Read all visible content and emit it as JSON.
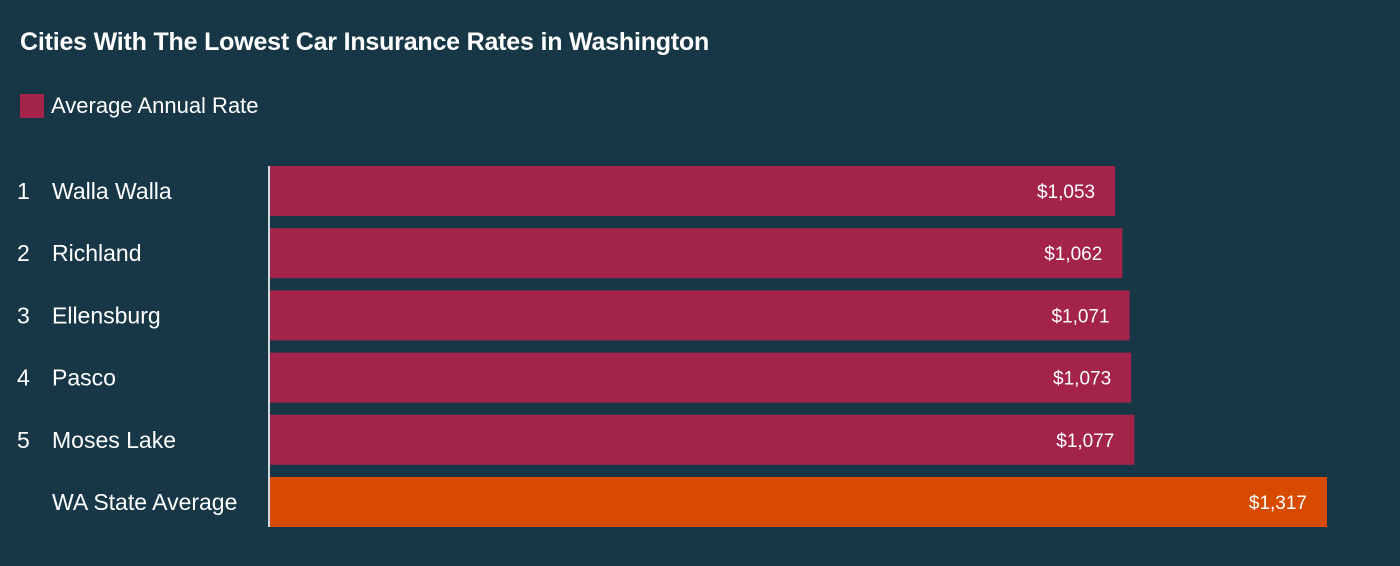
{
  "title": "Cities With The Lowest Car Insurance Rates in Washington",
  "legend": {
    "label": "Average Annual Rate",
    "color": "#A3234B"
  },
  "colors": {
    "background": "#173746",
    "city_bar": "#A3234B",
    "average_bar": "#D84A00",
    "axis_line": "#CFD8DC"
  },
  "chart_data": {
    "type": "bar",
    "orientation": "horizontal",
    "title": "Cities With The Lowest Car Insurance Rates in Washington",
    "categories": [
      "Walla Walla",
      "Richland",
      "Ellensburg",
      "Pasco",
      "Moses Lake",
      "WA State Average"
    ],
    "ranks": [
      "1",
      "2",
      "3",
      "4",
      "5",
      ""
    ],
    "series": [
      {
        "name": "Average Annual Rate",
        "values": [
          1053,
          1062,
          1071,
          1073,
          1077,
          1317
        ]
      }
    ],
    "value_labels": [
      "$1,053",
      "$1,062",
      "$1,071",
      "$1,073",
      "$1,077",
      "$1,317"
    ],
    "bar_colors": [
      "#A3234B",
      "#A3234B",
      "#A3234B",
      "#A3234B",
      "#A3234B",
      "#D84A00"
    ],
    "xlim": [
      0,
      1317
    ],
    "grid": false,
    "legend_position": "top-left"
  }
}
